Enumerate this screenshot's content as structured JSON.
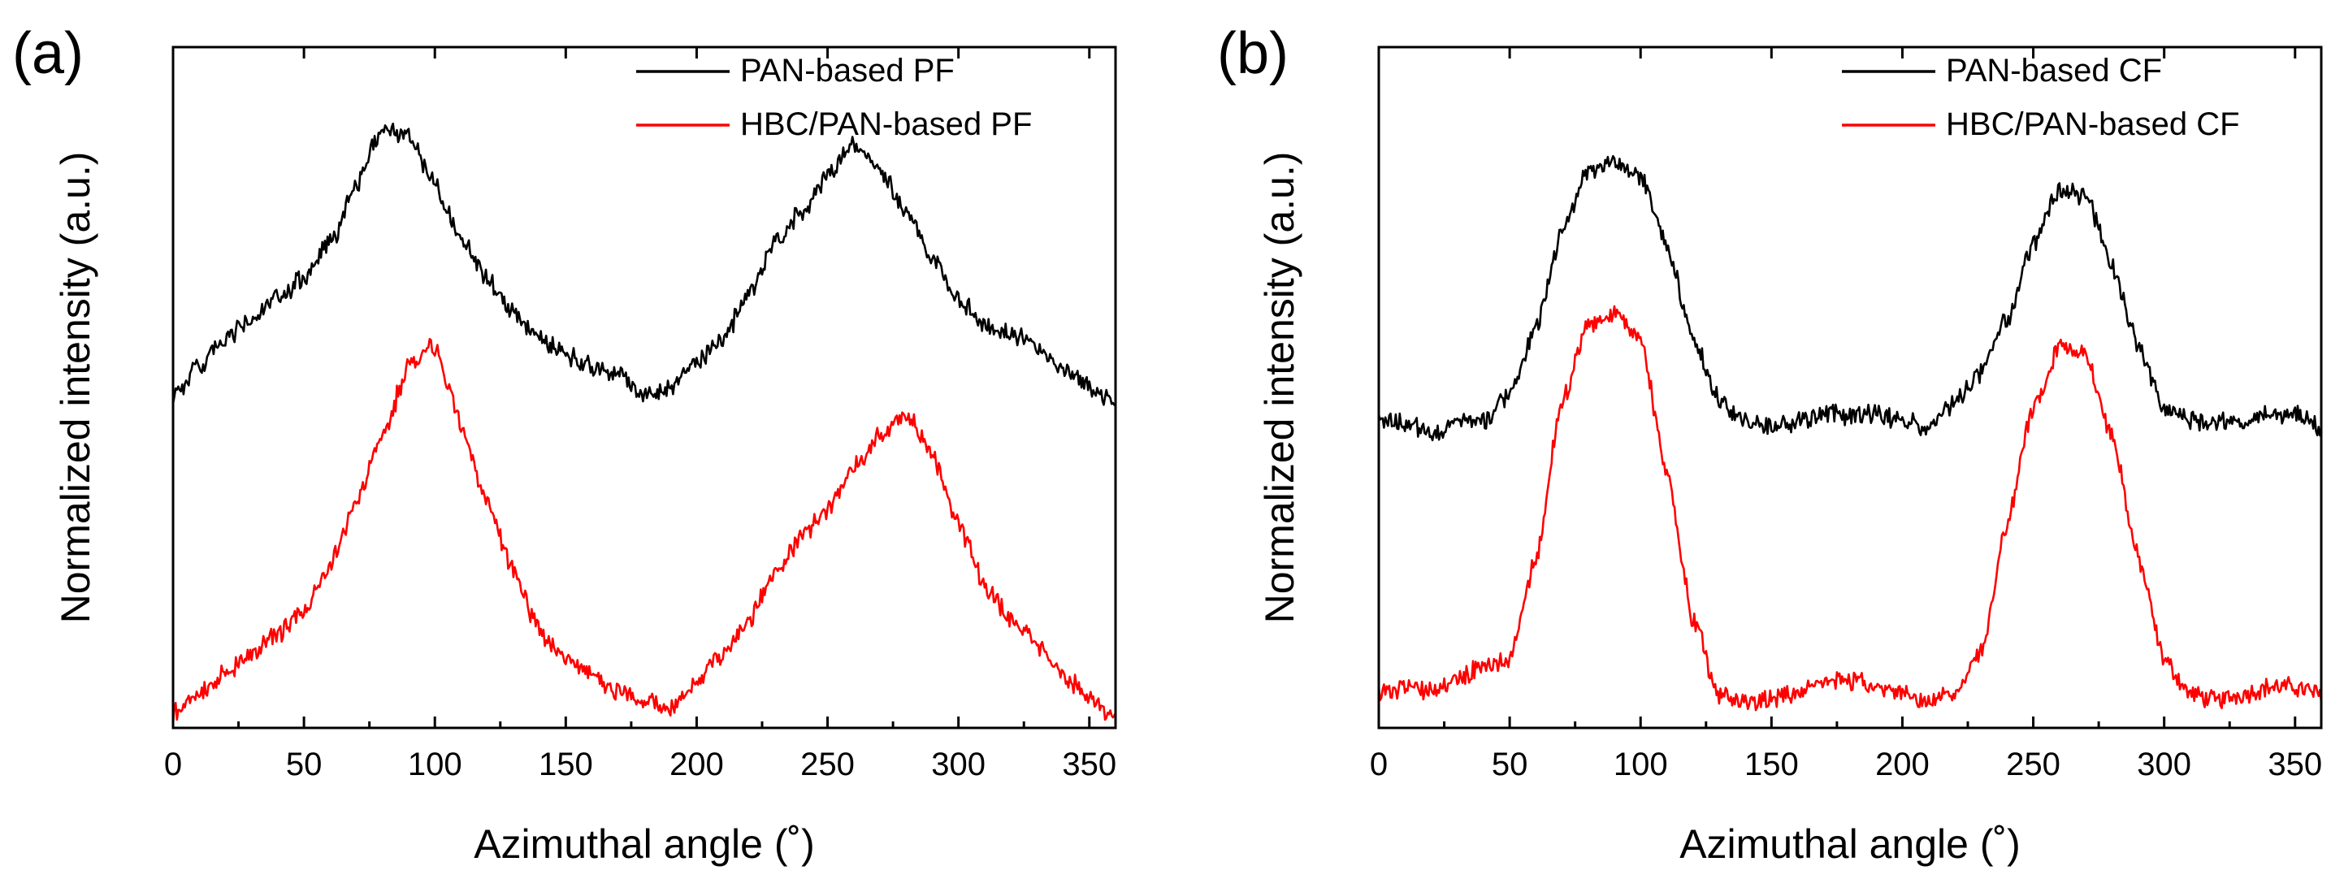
{
  "chart_data": [
    {
      "type": "line",
      "panel_label": "(a)",
      "xlabel": "Azimuthal angle (˚)",
      "ylabel": "Normalized intensity (a.u.)",
      "xlim": [
        0,
        360
      ],
      "ylim": [
        0,
        1
      ],
      "xticks": [
        0,
        50,
        100,
        150,
        200,
        250,
        300,
        350
      ],
      "y_tick_labels": false,
      "grid": false,
      "legend_position": "top-right",
      "series": [
        {
          "name": "PAN-based PF",
          "color": "#000000",
          "x": [
            0,
            10,
            20,
            30,
            40,
            50,
            60,
            70,
            80,
            90,
            100,
            110,
            120,
            130,
            140,
            150,
            160,
            170,
            180,
            190,
            200,
            210,
            220,
            230,
            240,
            250,
            260,
            270,
            280,
            290,
            300,
            310,
            320,
            330,
            340,
            350,
            360
          ],
          "y": [
            0.49,
            0.53,
            0.57,
            0.6,
            0.63,
            0.66,
            0.71,
            0.8,
            0.88,
            0.87,
            0.8,
            0.72,
            0.66,
            0.61,
            0.57,
            0.55,
            0.53,
            0.52,
            0.49,
            0.5,
            0.54,
            0.57,
            0.64,
            0.71,
            0.76,
            0.81,
            0.86,
            0.82,
            0.76,
            0.69,
            0.63,
            0.59,
            0.58,
            0.56,
            0.53,
            0.5,
            0.48
          ]
        },
        {
          "name": "HBC/PAN-based PF",
          "color": "#ff0000",
          "x": [
            0,
            10,
            20,
            30,
            40,
            50,
            60,
            70,
            80,
            90,
            100,
            110,
            120,
            130,
            140,
            150,
            160,
            170,
            180,
            190,
            200,
            210,
            220,
            230,
            240,
            250,
            260,
            270,
            280,
            290,
            300,
            310,
            320,
            330,
            340,
            350,
            360
          ],
          "y": [
            0.02,
            0.05,
            0.08,
            0.11,
            0.14,
            0.17,
            0.24,
            0.33,
            0.43,
            0.53,
            0.56,
            0.45,
            0.33,
            0.23,
            0.14,
            0.1,
            0.08,
            0.05,
            0.04,
            0.03,
            0.07,
            0.11,
            0.16,
            0.23,
            0.28,
            0.32,
            0.38,
            0.43,
            0.46,
            0.4,
            0.3,
            0.21,
            0.16,
            0.12,
            0.08,
            0.04,
            0.01
          ]
        }
      ]
    },
    {
      "type": "line",
      "panel_label": "(b)",
      "xlabel": "Azimuthal angle (˚)",
      "ylabel": "Normalized intensity (a.u.)",
      "xlim": [
        0,
        360
      ],
      "ylim": [
        0,
        1
      ],
      "xticks": [
        0,
        50,
        100,
        150,
        200,
        250,
        300,
        350
      ],
      "y_tick_labels": false,
      "grid": false,
      "legend_position": "top-right",
      "series": [
        {
          "name": "PAN-based CF",
          "color": "#000000",
          "x": [
            0,
            10,
            20,
            30,
            40,
            50,
            60,
            70,
            80,
            90,
            100,
            110,
            120,
            130,
            140,
            150,
            160,
            170,
            180,
            190,
            200,
            210,
            220,
            230,
            240,
            250,
            260,
            270,
            280,
            290,
            300,
            310,
            320,
            330,
            340,
            350,
            360
          ],
          "y": [
            0.45,
            0.45,
            0.43,
            0.45,
            0.45,
            0.49,
            0.59,
            0.73,
            0.82,
            0.83,
            0.81,
            0.71,
            0.57,
            0.48,
            0.45,
            0.44,
            0.45,
            0.46,
            0.46,
            0.46,
            0.45,
            0.44,
            0.48,
            0.52,
            0.6,
            0.71,
            0.79,
            0.78,
            0.68,
            0.56,
            0.47,
            0.45,
            0.45,
            0.45,
            0.46,
            0.46,
            0.44
          ]
        },
        {
          "name": "HBC/PAN-based CF",
          "color": "#ff0000",
          "x": [
            0,
            10,
            20,
            30,
            40,
            50,
            60,
            70,
            80,
            90,
            100,
            110,
            120,
            130,
            140,
            150,
            160,
            170,
            180,
            190,
            200,
            210,
            220,
            230,
            240,
            250,
            260,
            270,
            280,
            290,
            300,
            310,
            320,
            330,
            340,
            350,
            360
          ],
          "y": [
            0.05,
            0.06,
            0.05,
            0.07,
            0.09,
            0.1,
            0.25,
            0.48,
            0.59,
            0.61,
            0.57,
            0.38,
            0.16,
            0.05,
            0.04,
            0.04,
            0.05,
            0.07,
            0.07,
            0.06,
            0.05,
            0.04,
            0.05,
            0.11,
            0.3,
            0.47,
            0.56,
            0.55,
            0.43,
            0.25,
            0.1,
            0.05,
            0.04,
            0.05,
            0.06,
            0.06,
            0.05
          ]
        }
      ]
    }
  ]
}
